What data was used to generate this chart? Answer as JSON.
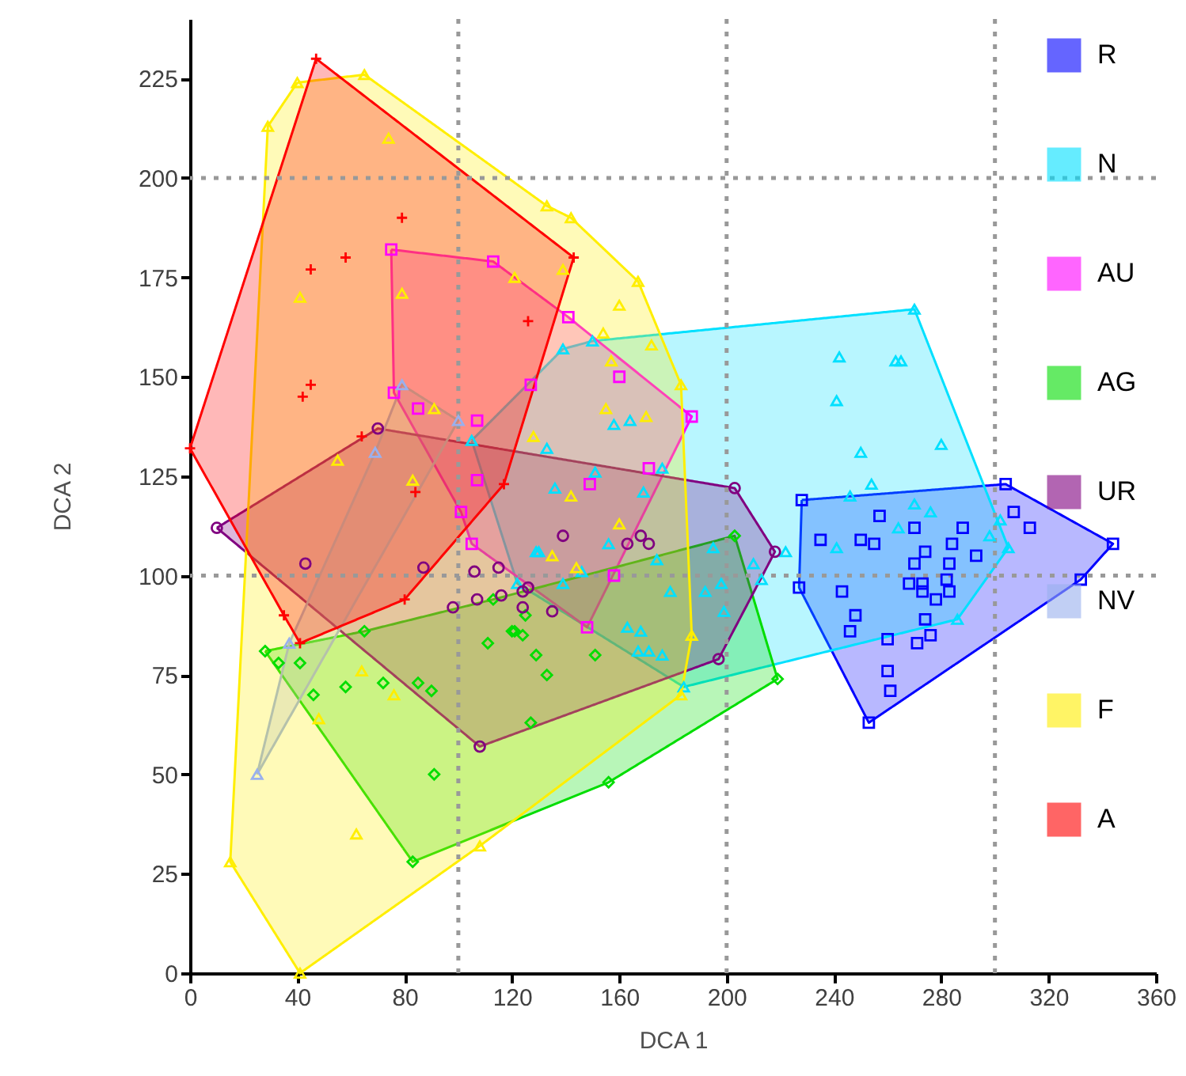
{
  "chart_data": {
    "type": "scatter",
    "xlabel": "DCA 1",
    "ylabel": "DCA 2",
    "xlim": [
      0,
      360
    ],
    "ylim": [
      0,
      240
    ],
    "xticks": [
      0,
      40,
      80,
      120,
      160,
      200,
      240,
      280,
      320,
      360
    ],
    "yticks": [
      0,
      25,
      50,
      75,
      100,
      125,
      150,
      175,
      200,
      225
    ],
    "grid": false,
    "legend": "top right",
    "ref_lines": [
      {
        "axis": "x",
        "value": 100,
        "color": "#999999",
        "line_style": "dotted"
      },
      {
        "axis": "x",
        "value": 200,
        "color": "#999999",
        "line_style": "dotted"
      },
      {
        "axis": "x",
        "value": 300,
        "color": "#999999",
        "line_style": "dotted"
      },
      {
        "axis": "y",
        "value": 100,
        "color": "#999999",
        "line_style": "dotted"
      },
      {
        "axis": "y",
        "value": 200,
        "color": "#999999",
        "line_style": "dotted"
      }
    ],
    "series": [
      {
        "name": "R",
        "marker": "square",
        "color": "#0000ff",
        "x": [
          304,
          344,
          332,
          253,
          227,
          228,
          257,
          235,
          250,
          255,
          270,
          288,
          307,
          313,
          274,
          284,
          293,
          270,
          283,
          268,
          273,
          273,
          282,
          283,
          278,
          243,
          248,
          246,
          274,
          260,
          276,
          271,
          260,
          261
        ],
        "values": [
          123,
          108,
          99,
          63,
          97,
          119,
          115,
          109,
          109,
          108,
          112,
          112,
          116,
          112,
          106,
          108,
          105,
          103,
          103,
          98,
          98,
          96,
          99,
          96,
          94,
          96,
          90,
          86,
          89,
          84,
          85,
          83,
          76,
          71
        ]
      },
      {
        "type": "area",
        "color": "#0000ff",
        "x": [
          228,
          304,
          344,
          332,
          253,
          227
        ],
        "values": [
          119,
          123,
          108,
          99,
          63,
          97
        ]
      },
      {
        "name": "N",
        "marker": "triangle",
        "color": "#00e0ff",
        "x": [
          105,
          139,
          150,
          270,
          305,
          286,
          184,
          122,
          242,
          263,
          265,
          241,
          250,
          280,
          254,
          246,
          270,
          276,
          264,
          241,
          298,
          302,
          222,
          158,
          164,
          133,
          151,
          176,
          136,
          169,
          130,
          156,
          174,
          195,
          210,
          146,
          139,
          179,
          192,
          198,
          199,
          163,
          168,
          167,
          171,
          176,
          213,
          129
        ],
        "values": [
          134,
          157,
          159,
          167,
          107,
          89,
          72,
          98,
          155,
          154,
          154,
          144,
          131,
          133,
          123,
          120,
          118,
          116,
          112,
          107,
          110,
          114,
          106,
          138,
          139,
          132,
          126,
          127,
          122,
          121,
          106,
          108,
          104,
          107,
          103,
          101,
          98,
          96,
          96,
          98,
          91,
          87,
          86,
          81,
          81,
          80,
          99,
          106
        ]
      },
      {
        "type": "area",
        "color": "#00e0ff",
        "x": [
          105,
          139,
          150,
          270,
          305,
          286,
          184,
          122
        ],
        "values": [
          134,
          157,
          159,
          167,
          107,
          89,
          72,
          98
        ]
      },
      {
        "name": "AU",
        "marker": "square",
        "color": "#ff00ff",
        "x": [
          75,
          113,
          141,
          187,
          148,
          105,
          101,
          76,
          85,
          107,
          127,
          107,
          160,
          149,
          171,
          158
        ],
        "values": [
          182,
          179,
          165,
          140,
          87,
          108,
          116,
          146,
          142,
          139,
          148,
          124,
          150,
          123,
          127,
          100
        ]
      },
      {
        "type": "area",
        "color": "#ff00ff",
        "x": [
          75,
          113,
          141,
          187,
          148,
          105,
          101,
          76
        ],
        "values": [
          182,
          179,
          165,
          140,
          87,
          108,
          116,
          146
        ]
      },
      {
        "name": "AG",
        "marker": "diamond",
        "color": "#00dd00",
        "x": [
          28,
          65,
          113,
          203,
          219,
          156,
          83,
          33,
          41,
          46,
          58,
          72,
          85,
          90,
          91,
          111,
          120,
          124,
          129,
          127,
          125,
          121,
          151,
          133
        ],
        "values": [
          81,
          86,
          94,
          110,
          74,
          48,
          28,
          78,
          78,
          70,
          72,
          73,
          73,
          71,
          50,
          83,
          86,
          85,
          80,
          63,
          90,
          86,
          80,
          75
        ]
      },
      {
        "type": "area",
        "color": "#00dd00",
        "x": [
          28,
          65,
          113,
          203,
          219,
          156,
          83
        ],
        "values": [
          81,
          86,
          94,
          110,
          74,
          48,
          28
        ]
      },
      {
        "name": "UR",
        "marker": "circle",
        "color": "#800080",
        "x": [
          10,
          70,
          203,
          218,
          197,
          108,
          43,
          87,
          106,
          115,
          98,
          107,
          116,
          124,
          124,
          139,
          163,
          168,
          171,
          126,
          135
        ],
        "values": [
          112,
          137,
          122,
          106,
          79,
          57,
          103,
          102,
          101,
          102,
          92,
          94,
          95,
          96,
          92,
          110,
          108,
          110,
          108,
          97,
          91
        ]
      },
      {
        "type": "area",
        "color": "#800080",
        "x": [
          10,
          70,
          203,
          218,
          197,
          108
        ],
        "values": [
          112,
          137,
          122,
          106,
          79,
          57
        ]
      },
      {
        "name": "NV",
        "marker": "triangle",
        "color": "#99b0ee",
        "x": [
          25,
          37,
          69,
          79,
          100
        ],
        "values": [
          50,
          83,
          131,
          148,
          139
        ]
      },
      {
        "type": "area",
        "color": "#99b0ee",
        "x": [
          25,
          37,
          69,
          79,
          100
        ],
        "values": [
          50,
          83,
          131,
          148,
          139
        ]
      },
      {
        "name": "F",
        "marker": "triangle",
        "color": "#ffee00",
        "x": [
          40,
          65,
          133,
          142,
          167,
          183,
          187,
          183,
          108,
          41,
          15,
          29,
          74,
          41,
          79,
          121,
          91,
          55,
          128,
          83,
          64,
          76,
          48,
          62,
          139,
          160,
          154,
          172,
          157,
          155,
          170,
          142,
          160,
          135,
          144
        ],
        "values": [
          224,
          226,
          193,
          190,
          174,
          148,
          85,
          70,
          32,
          0,
          28,
          213,
          210,
          170,
          171,
          175,
          142,
          129,
          135,
          124,
          76,
          70,
          64,
          35,
          177,
          168,
          161,
          158,
          154,
          142,
          140,
          120,
          113,
          105,
          102
        ]
      },
      {
        "type": "area",
        "color": "#ffee00",
        "x": [
          40,
          65,
          133,
          142,
          167,
          183,
          187,
          183,
          108,
          41,
          15,
          29
        ],
        "values": [
          224,
          226,
          193,
          190,
          174,
          148,
          85,
          70,
          32,
          0,
          28,
          213
        ]
      },
      {
        "name": "A",
        "marker": "cross",
        "color": "#ff0000",
        "x": [
          47,
          143,
          117,
          80,
          41,
          35,
          0,
          79,
          58,
          45,
          45,
          42,
          64,
          126,
          84
        ],
        "values": [
          230,
          180,
          123,
          94,
          83,
          90,
          132,
          190,
          180,
          177,
          148,
          145,
          135,
          164,
          121
        ]
      },
      {
        "type": "area",
        "color": "#ff0000",
        "x": [
          47,
          143,
          117,
          80,
          41,
          35,
          0
        ],
        "values": [
          230,
          180,
          123,
          94,
          83,
          90,
          132
        ]
      }
    ]
  }
}
